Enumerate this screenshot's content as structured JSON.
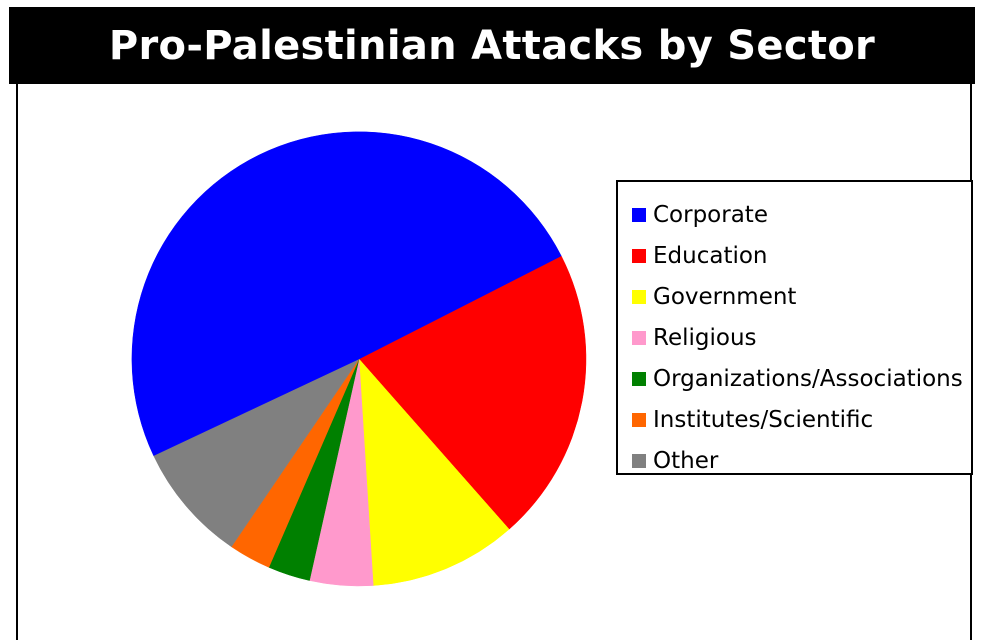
{
  "chart_data": {
    "type": "pie",
    "title": "Pro-Palestinian Attacks by Sector",
    "start_angle_deg": -27,
    "direction": "clockwise",
    "slices": [
      {
        "label": "Education",
        "value": 21,
        "color": "#ff0000"
      },
      {
        "label": "Government",
        "value": 10.5,
        "color": "#ffff00"
      },
      {
        "label": "Religious",
        "value": 4.5,
        "color": "#ff99cc"
      },
      {
        "label": "Organizations/Associations",
        "value": 3,
        "color": "#008000"
      },
      {
        "label": "Institutes/Scientific",
        "value": 3,
        "color": "#ff6600"
      },
      {
        "label": "Other",
        "value": 8.5,
        "color": "#808080"
      },
      {
        "label": "Corporate",
        "value": 49.5,
        "color": "#0000ff"
      }
    ],
    "legend_order": [
      "Corporate",
      "Education",
      "Government",
      "Religious",
      "Organizations/Associations",
      "Institutes/Scientific",
      "Other"
    ],
    "legend_position": "right"
  }
}
